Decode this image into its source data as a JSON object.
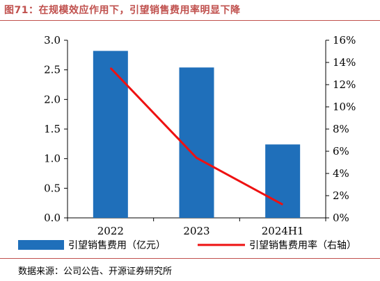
{
  "header": {
    "title": "图71：在规模效应作用下，引望销售费用率明显下降"
  },
  "footer": {
    "source": "数据来源：公司公告、开源证券研究所"
  },
  "colors": {
    "bar": "#1f6fba",
    "line": "#ee1111",
    "title": "#c0504d"
  },
  "chart_data": {
    "type": "bar+line",
    "categories": [
      "2022",
      "2023",
      "2024H1"
    ],
    "series": [
      {
        "name": "引望销售费用（亿元）",
        "type": "bar",
        "axis": "left",
        "values": [
          2.82,
          2.54,
          1.24
        ]
      },
      {
        "name": "引望销售费用率（右轴）",
        "type": "line",
        "axis": "right",
        "values": [
          13.5,
          5.4,
          1.2
        ]
      }
    ],
    "y_left": {
      "min": 0,
      "max": 3.0,
      "step": 0.5,
      "tick_labels": [
        "0.0",
        "0.5",
        "1.0",
        "1.5",
        "2.0",
        "2.5",
        "3.0"
      ]
    },
    "y_right": {
      "min": 0,
      "max": 16,
      "step": 2,
      "tick_labels": [
        "0%",
        "2%",
        "4%",
        "6%",
        "8%",
        "10%",
        "12%",
        "14%",
        "16%"
      ]
    },
    "grid": false,
    "legend_position": "bottom"
  }
}
